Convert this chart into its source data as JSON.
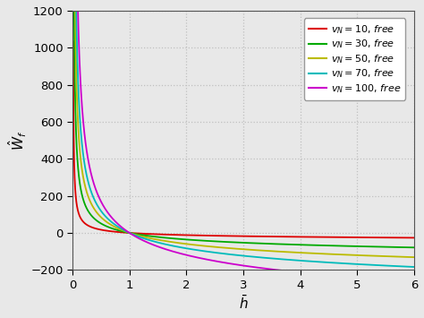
{
  "xlabel": "$\\bar{h}$",
  "ylabel": "$\\hat{W}_f$",
  "xlim": [
    0,
    6
  ],
  "ylim": [
    -200,
    1200
  ],
  "yticks": [
    -200,
    0,
    200,
    400,
    600,
    800,
    1000,
    1200
  ],
  "xticks": [
    0,
    1,
    2,
    3,
    4,
    5,
    6
  ],
  "grid_color": "#c0c0c0",
  "background_color": "#e8e8e8",
  "series": [
    {
      "vN": 10,
      "color": "#dd0000",
      "label": "$v_N = 10$, $\\mathit{free}$"
    },
    {
      "vN": 30,
      "color": "#00aa00",
      "label": "$v_N = 30$, $\\mathit{free}$"
    },
    {
      "vN": 50,
      "color": "#bbbb00",
      "label": "$v_N = 50$, $\\mathit{free}$"
    },
    {
      "vN": 70,
      "color": "#00bbbb",
      "label": "$v_N = 70$, $\\mathit{free}$"
    },
    {
      "vN": 100,
      "color": "#cc00cc",
      "label": "$v_N = 100$, $\\mathit{free}$"
    }
  ],
  "h_start": 0.01,
  "h_end": 6.0,
  "n_points": 5000
}
